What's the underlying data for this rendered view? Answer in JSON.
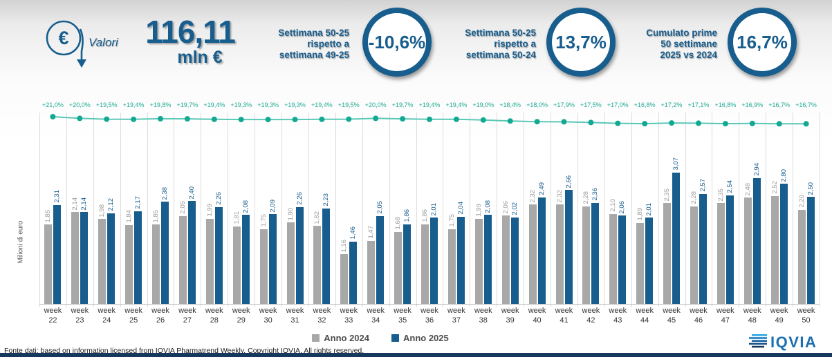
{
  "header": {
    "icon_caption": "Valori",
    "total_value": "116,11",
    "total_unit": "mln €",
    "kpis": [
      {
        "label_lines": [
          "Settimana 50-25",
          "rispetto a",
          "settimana 49-25"
        ],
        "value": "-10,6%"
      },
      {
        "label_lines": [
          "Settimana 50-25",
          "rispetto a",
          "settimana 50-24"
        ],
        "value": "13,7%"
      },
      {
        "label_lines": [
          "Cumulato prime",
          "50 settimane",
          "2025 vs 2024"
        ],
        "value": "16,7%"
      }
    ]
  },
  "chart_data": {
    "type": "bar",
    "title": "",
    "xlabel": "",
    "ylabel": "Milioni di euro",
    "ylim": [
      0,
      3.2
    ],
    "grid": "vertical-separators",
    "legend_position": "bottom",
    "category_prefix": "week",
    "categories": [
      "22",
      "23",
      "24",
      "25",
      "26",
      "27",
      "28",
      "29",
      "30",
      "31",
      "32",
      "33",
      "34",
      "35",
      "36",
      "37",
      "38",
      "39",
      "40",
      "41",
      "42",
      "43",
      "44",
      "45",
      "46",
      "47",
      "48",
      "49",
      "50"
    ],
    "series": [
      {
        "name": "Anno 2024",
        "color": "#a8a8a8",
        "values": [
          1.85,
          2.14,
          1.98,
          1.84,
          1.85,
          2.05,
          1.99,
          1.81,
          1.75,
          1.9,
          1.82,
          1.16,
          1.47,
          1.68,
          1.86,
          1.75,
          1.99,
          2.06,
          2.32,
          2.32,
          2.28,
          2.1,
          1.89,
          2.35,
          2.28,
          2.35,
          2.48,
          2.52,
          2.2
        ]
      },
      {
        "name": "Anno 2025",
        "color": "#175d8d",
        "values": [
          2.31,
          2.14,
          2.12,
          2.17,
          2.38,
          2.4,
          2.26,
          2.08,
          2.09,
          2.26,
          2.23,
          1.46,
          2.05,
          1.86,
          2.01,
          2.04,
          2.08,
          2.02,
          2.49,
          2.66,
          2.36,
          2.06,
          2.01,
          3.07,
          2.57,
          2.54,
          2.94,
          2.8,
          2.5
        ]
      }
    ],
    "line_series": {
      "color": "#13a893",
      "labels": [
        "+21,0%",
        "+20,0%",
        "+19,5%",
        "+19,4%",
        "+19,8%",
        "+19,7%",
        "+19,4%",
        "+19,3%",
        "+19,3%",
        "+19,3%",
        "+19,4%",
        "+19,5%",
        "+20,0%",
        "+19,7%",
        "+19,4%",
        "+19,4%",
        "+19,0%",
        "+18,4%",
        "+18,0%",
        "+17,9%",
        "+17,5%",
        "+17,0%",
        "+16,8%",
        "+17,2%",
        "+17,1%",
        "+16,8%",
        "+16,9%",
        "+16,7%",
        "+16,7%"
      ]
    }
  },
  "footer": {
    "source_text": "Fonte dati: based on information licensed from IQVIA Pharmatrend Weekly. Copyright IQVIA. All rights reserved.",
    "logo_text": "IQVIA"
  },
  "colors": {
    "accent_blue": "#175d8d",
    "bar_gray": "#a8a8a8",
    "line_teal": "#13a893",
    "bottom_bar": "#17375e"
  }
}
